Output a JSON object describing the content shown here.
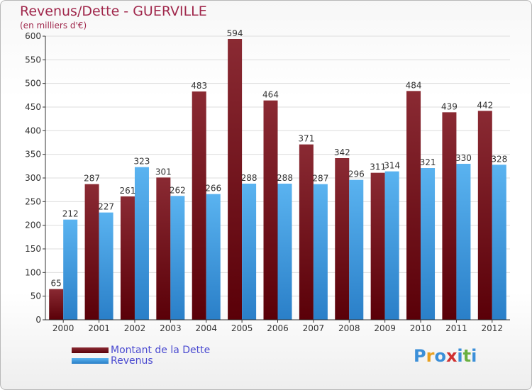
{
  "header": {
    "title": "Revenus/Dette - GUERVILLE",
    "subtitle": "(en milliers d'€)"
  },
  "legend": {
    "items": [
      {
        "label": "Montant de la Dette",
        "color": "#6b0a14"
      },
      {
        "label": "Revenus",
        "color": "#3f9be0"
      }
    ]
  },
  "logo": {
    "letters": [
      {
        "char": "P",
        "color": "#3b8fd8"
      },
      {
        "char": "r",
        "color": "#e8a020"
      },
      {
        "char": "o",
        "color": "#3b8fd8"
      },
      {
        "char": "x",
        "color": "#d03030"
      },
      {
        "char": "i",
        "color": "#3b8fd8"
      },
      {
        "char": "t",
        "color": "#6ab040"
      },
      {
        "char": "i",
        "color": "#3b8fd8"
      }
    ]
  },
  "chart_data": {
    "type": "bar",
    "title": "Revenus/Dette - GUERVILLE",
    "subtitle": "(en milliers d'€)",
    "categories": [
      "2000",
      "2001",
      "2002",
      "2003",
      "2004",
      "2005",
      "2006",
      "2007",
      "2008",
      "2009",
      "2010",
      "2011",
      "2012"
    ],
    "series": [
      {
        "name": "Montant de la Dette",
        "color": "#7a1520",
        "values": [
          65,
          287,
          261,
          301,
          483,
          594,
          464,
          371,
          342,
          311,
          484,
          439,
          442
        ]
      },
      {
        "name": "Revenus",
        "color": "#4aa3e6",
        "values": [
          212,
          227,
          323,
          262,
          266,
          288,
          288,
          287,
          296,
          314,
          321,
          330,
          328
        ]
      }
    ],
    "ylim": [
      0,
      600
    ],
    "yticks": [
      0,
      50,
      100,
      150,
      200,
      250,
      300,
      350,
      400,
      450,
      500,
      550,
      600
    ],
    "grid": true,
    "legend_position": "bottom-left"
  }
}
